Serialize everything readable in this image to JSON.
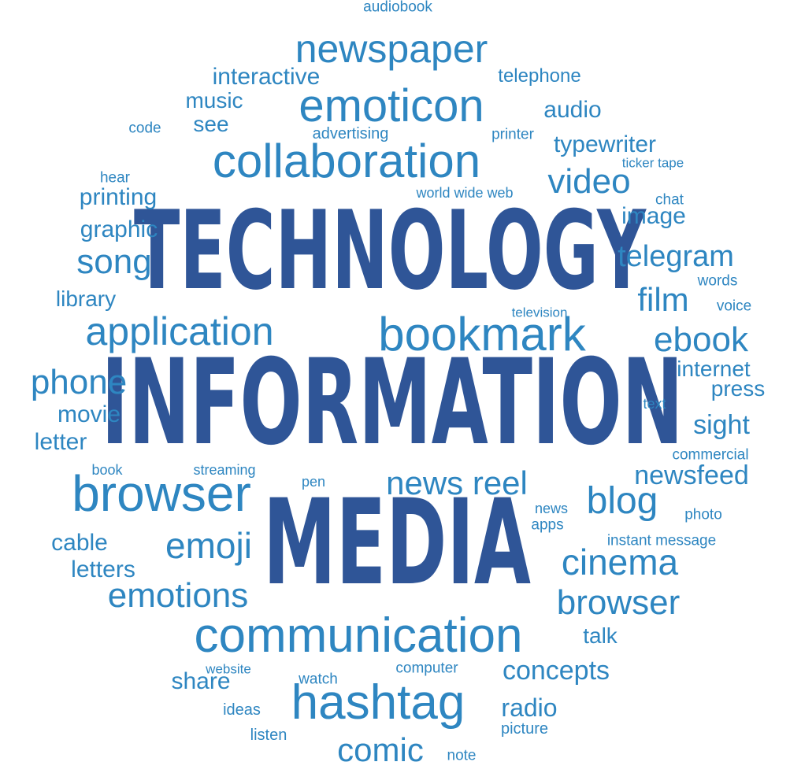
{
  "cloud": {
    "color_light": "#2e86c1",
    "color_dark": "#2f5597",
    "words": {
      "technology": "TECHNOLOGY",
      "information": "INFORMATION",
      "media": "MEDIA",
      "communication": "communication",
      "collaboration": "collaboration",
      "bookmark": "bookmark",
      "browser_left": "browser",
      "browser_right": "browser",
      "emoticon": "emoticon",
      "newspaper": "newspaper",
      "application": "application",
      "hashtag": "hashtag",
      "news_reel": "news reel",
      "cinema": "cinema",
      "emotions": "emotions",
      "emoji": "emoji",
      "phone": "phone",
      "song": "song",
      "video": "video",
      "ebook": "ebook",
      "blog": "blog",
      "film": "film",
      "telegram": "telegram",
      "newsfeed": "newsfeed",
      "comic": "comic",
      "concepts": "concepts",
      "typewriter": "typewriter",
      "interactive": "interactive",
      "audio": "audio",
      "image": "image",
      "printing": "printing",
      "graphic": "graphic",
      "sight": "sight",
      "radio": "radio",
      "movie": "movie",
      "letter": "letter",
      "cable": "cable",
      "letters": "letters",
      "share": "share",
      "music": "music",
      "see": "see",
      "library": "library",
      "internet": "internet",
      "press": "press",
      "telephone": "telephone",
      "talk": "talk",
      "audiobook": "audiobook",
      "code": "code",
      "hear": "hear",
      "advertising": "advertising",
      "printer": "printer",
      "ticker_tape": "ticker tape",
      "world_wide_web": "world wide web",
      "chat": "chat",
      "words": "words",
      "voice": "voice",
      "television": "television",
      "text": "text",
      "commercial": "commercial",
      "book": "book",
      "streaming": "streaming",
      "pen": "pen",
      "news": "news",
      "apps": "apps",
      "photo": "photo",
      "instant_message": "instant message",
      "website": "website",
      "watch": "watch",
      "computer": "computer",
      "ideas": "ideas",
      "listen": "listen",
      "note": "note",
      "picture": "picture"
    }
  }
}
